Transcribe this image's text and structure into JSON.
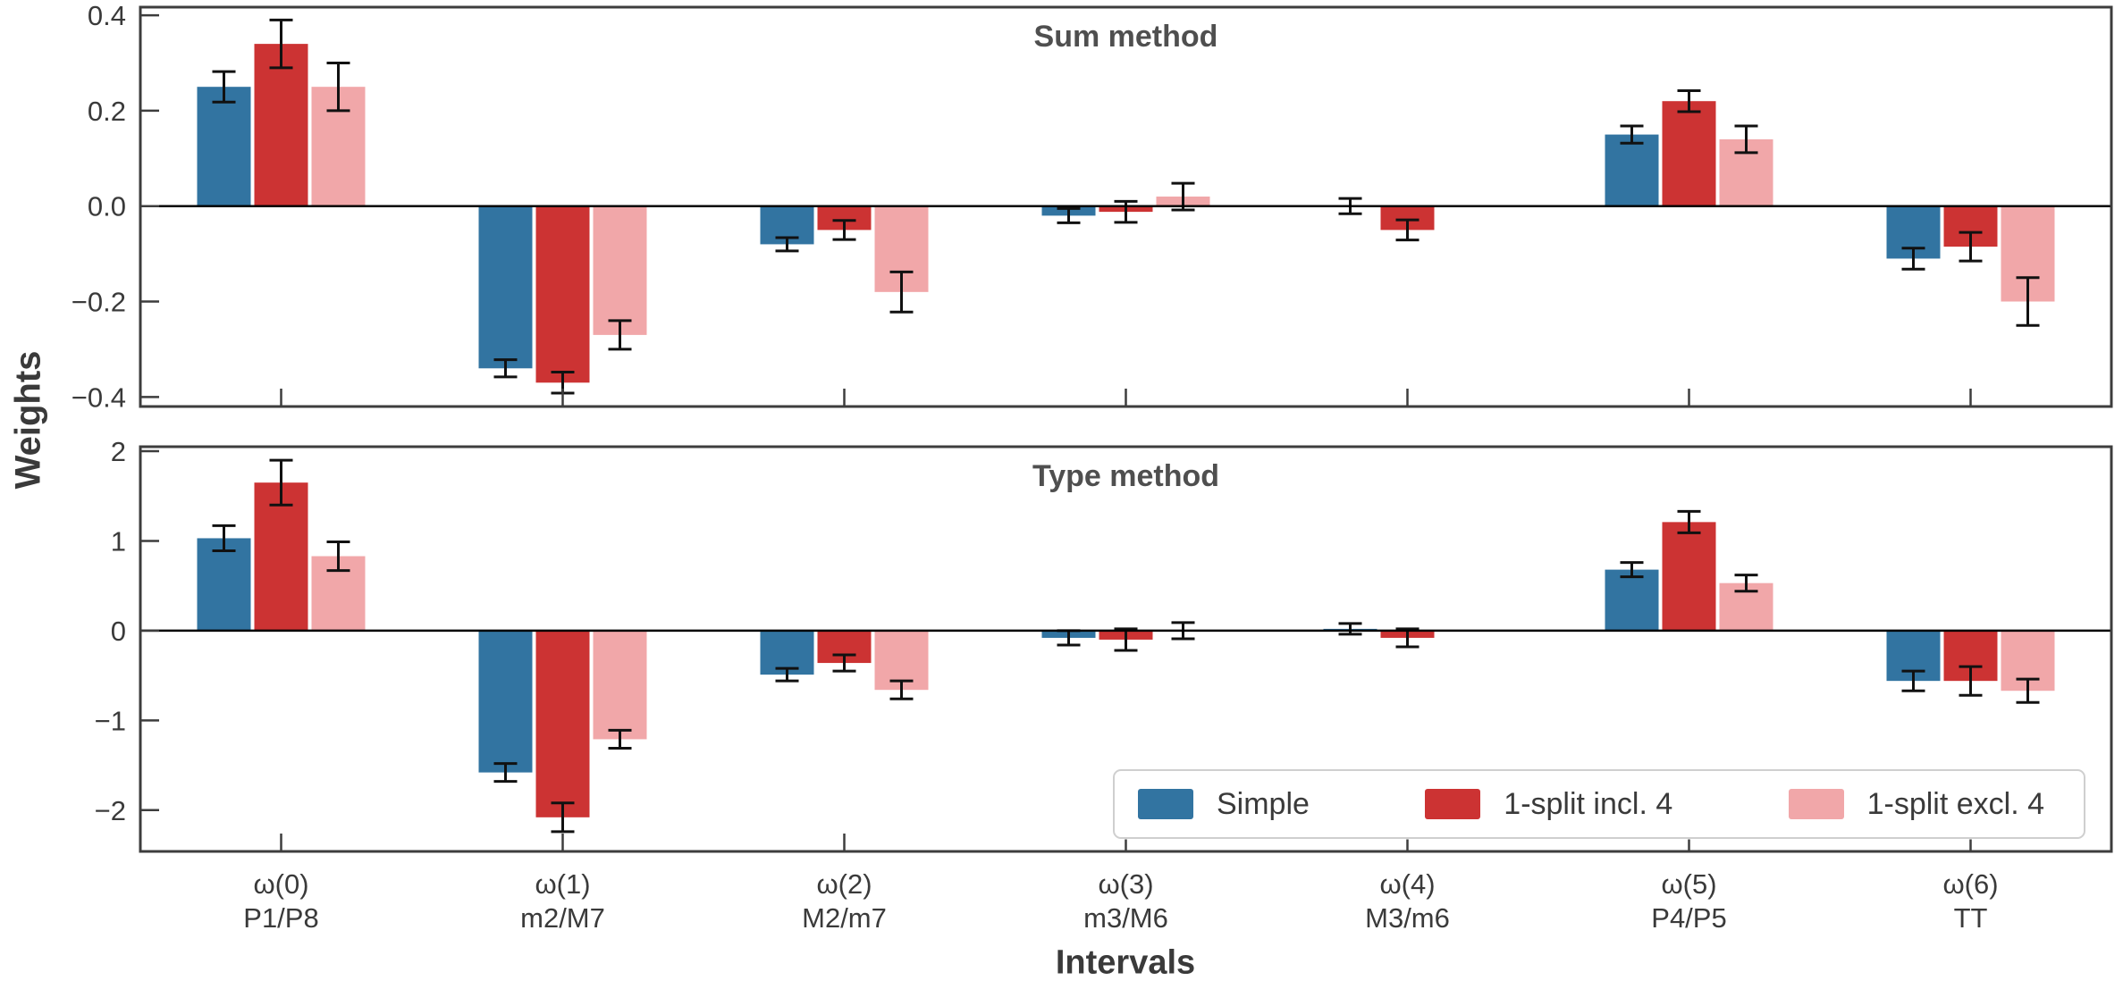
{
  "chart_data": {
    "type": "bar",
    "xlabel": "Intervals",
    "ylabel": "Weights",
    "legend_position": "lower right",
    "series_names": [
      "Simple",
      "1-split incl. 4",
      "1-split excl. 4"
    ],
    "series_colors": [
      "#3274A1",
      "#CC3333",
      "#F1A7A9"
    ],
    "error_bar_color": "#111111",
    "group_labels": [
      [
        "ω(0)",
        "P1/P8"
      ],
      [
        "ω(1)",
        "m2/M7"
      ],
      [
        "ω(2)",
        "M2/m7"
      ],
      [
        "ω(3)",
        "m3/M6"
      ],
      [
        "ω(4)",
        "M3/m6"
      ],
      [
        "ω(5)",
        "P4/P5"
      ],
      [
        "ω(6)",
        "TT"
      ]
    ],
    "panels": [
      {
        "title": "Sum method",
        "ylim": [
          -0.42,
          0.417
        ],
        "ytick_values": [
          0.4,
          0.2,
          0.0,
          -0.2,
          -0.4
        ],
        "ytick_labels": [
          "0.4",
          "0.2",
          "0.0",
          "−0.2",
          "−0.4"
        ],
        "series": [
          {
            "name": "Simple",
            "values": [
              0.25,
              -0.34,
              -0.08,
              -0.02,
              0.0,
              0.15,
              -0.11
            ],
            "errors": [
              0.032,
              0.018,
              0.014,
              0.015,
              0.016,
              0.018,
              0.022
            ]
          },
          {
            "name": "1-split incl. 4",
            "values": [
              0.34,
              -0.37,
              -0.05,
              -0.012,
              -0.05,
              0.22,
              -0.085
            ],
            "errors": [
              0.05,
              0.022,
              0.02,
              0.022,
              0.021,
              0.022,
              0.03
            ]
          },
          {
            "name": "1-split excl. 4",
            "values": [
              0.25,
              -0.27,
              -0.18,
              0.02,
              0.0,
              0.14,
              -0.2
            ],
            "errors": [
              0.05,
              0.03,
              0.042,
              0.028,
              0.0,
              0.028,
              0.05
            ]
          }
        ]
      },
      {
        "title": "Type method",
        "ylim": [
          -2.46,
          2.05
        ],
        "ytick_values": [
          2,
          1,
          0,
          -1,
          -2
        ],
        "ytick_labels": [
          "2",
          "1",
          "0",
          "−1",
          "−2"
        ],
        "series": [
          {
            "name": "Simple",
            "values": [
              1.03,
              -1.58,
              -0.49,
              -0.08,
              0.02,
              0.68,
              -0.56
            ],
            "errors": [
              0.14,
              0.1,
              0.07,
              0.08,
              0.06,
              0.08,
              0.11
            ]
          },
          {
            "name": "1-split incl. 4",
            "values": [
              1.65,
              -2.08,
              -0.36,
              -0.1,
              -0.08,
              1.21,
              -0.56
            ],
            "errors": [
              0.25,
              0.16,
              0.09,
              0.12,
              0.1,
              0.12,
              0.16
            ]
          },
          {
            "name": "1-split excl. 4",
            "values": [
              0.83,
              -1.21,
              -0.66,
              0.0,
              0.0,
              0.53,
              -0.67
            ],
            "errors": [
              0.16,
              0.1,
              0.1,
              0.09,
              0.0,
              0.09,
              0.13
            ]
          }
        ]
      }
    ]
  }
}
